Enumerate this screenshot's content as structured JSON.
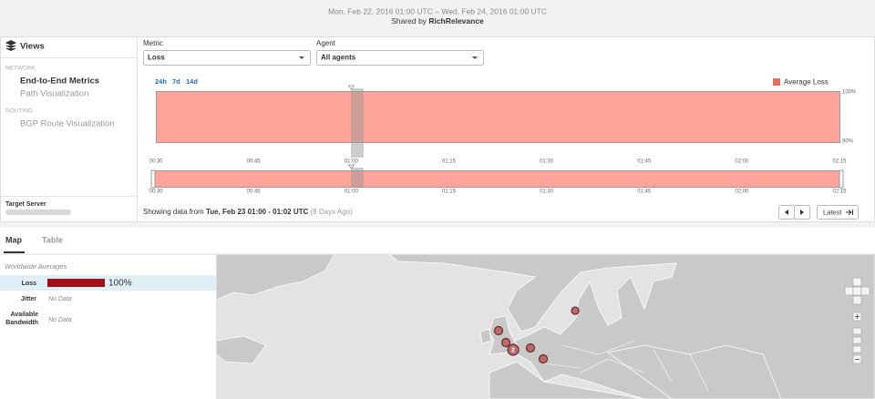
{
  "header": {
    "date_range": "Mon, Feb 22, 2016 01:00 UTC – Wed, Feb 24, 2016 01:00 UTC",
    "shared_by": "Shared by",
    "shared_by_org": "RichRelevance"
  },
  "sidebar": {
    "title": "Views",
    "sections": [
      {
        "label": "NETWORK",
        "items": [
          "End-to-End Metrics",
          "Path Visualization"
        ]
      },
      {
        "label": "ROUTING",
        "items": [
          "BGP Route Visualization"
        ]
      }
    ],
    "target_server_label": "Target Server"
  },
  "controls": {
    "metric_label": "Metric",
    "metric_value": "Loss",
    "agent_label": "Agent",
    "agent_value": "All agents",
    "ranges": [
      "24h",
      "7d",
      "14d"
    ]
  },
  "timeline": {
    "legend": "Average Loss",
    "y_labels": [
      "100%",
      "90%"
    ],
    "x_labels": [
      "00:30",
      "00:45",
      "01:00",
      "01:15",
      "01:30",
      "01:45",
      "02:00",
      "02:15"
    ]
  },
  "status": {
    "prefix": "Showing data from",
    "range": "Tue, Feb 23 01:00 - 01:02 UTC",
    "ago": "(8 Days Ago)",
    "latest": "Latest"
  },
  "tabs": [
    "Map",
    "Table"
  ],
  "averages": {
    "title": "Worldwide Averages",
    "rows": [
      {
        "label": "Loss",
        "value": "100%"
      },
      {
        "label": "Jitter",
        "value": "No Data"
      },
      {
        "label": "Available Bandwidth",
        "value": "No Data"
      }
    ]
  },
  "map": {
    "cluster_label": "2"
  }
}
